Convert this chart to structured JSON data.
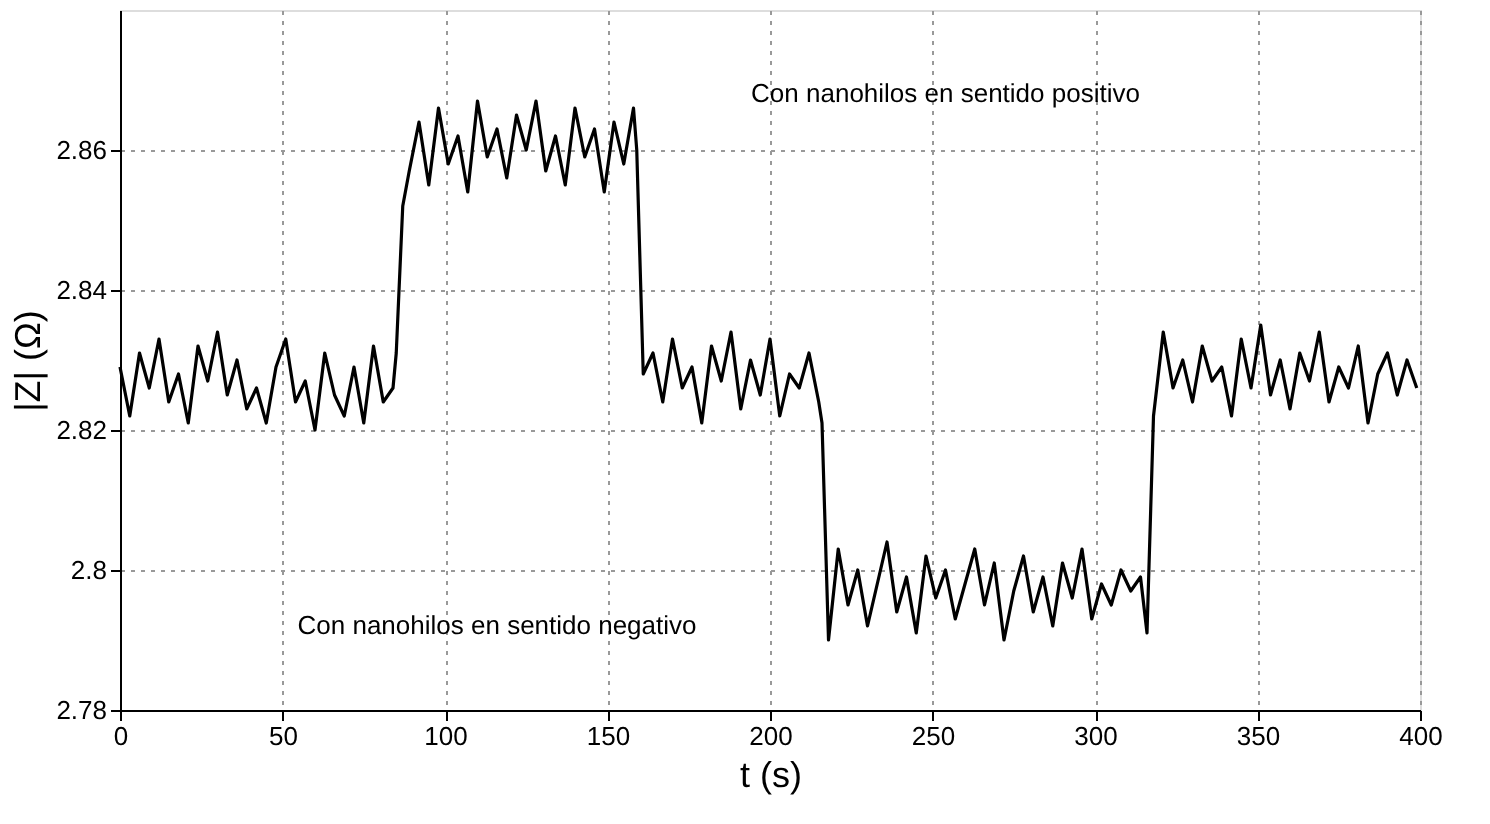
{
  "chart_data": {
    "type": "line",
    "xlabel": "t (s)",
    "ylabel": "|Z| (Ω)",
    "xlim": [
      0,
      400
    ],
    "ylim": [
      2.78,
      2.88
    ],
    "xticks": [
      0,
      50,
      100,
      150,
      200,
      250,
      300,
      350,
      400
    ],
    "yticks": [
      2.78,
      2.8,
      2.82,
      2.84,
      2.86
    ],
    "grid": true,
    "line_style": "solid",
    "marker": "none",
    "annotations": [
      "Con nanohilos en sentido positivo",
      "Con nanohilos en sentido negativo"
    ],
    "series": [
      {
        "color": "#000000",
        "x": [
          0,
          3,
          6,
          9,
          12,
          15,
          18,
          21,
          24,
          27,
          30,
          33,
          36,
          39,
          42,
          45,
          48,
          51,
          54,
          57,
          60,
          63,
          66,
          69,
          72,
          75,
          78,
          81,
          84,
          85,
          87,
          89,
          92,
          95,
          98,
          101,
          104,
          107,
          110,
          113,
          116,
          119,
          122,
          125,
          128,
          131,
          134,
          137,
          140,
          143,
          146,
          149,
          152,
          155,
          158,
          159,
          161,
          164,
          167,
          170,
          173,
          176,
          179,
          182,
          185,
          188,
          191,
          194,
          197,
          200,
          203,
          206,
          209,
          212,
          215,
          216,
          218,
          221,
          224,
          227,
          230,
          233,
          236,
          239,
          242,
          245,
          248,
          251,
          254,
          257,
          260,
          263,
          266,
          269,
          272,
          275,
          278,
          281,
          284,
          287,
          290,
          293,
          296,
          299,
          302,
          305,
          308,
          311,
          314,
          316,
          318,
          321,
          324,
          327,
          330,
          333,
          336,
          339,
          342,
          345,
          348,
          351,
          354,
          357,
          360,
          363,
          366,
          369,
          372,
          375,
          378,
          381,
          384,
          387,
          390,
          393,
          396,
          399
        ],
        "values": [
          2.829,
          2.822,
          2.831,
          2.826,
          2.833,
          2.824,
          2.828,
          2.821,
          2.832,
          2.827,
          2.834,
          2.825,
          2.83,
          2.823,
          2.826,
          2.821,
          2.829,
          2.833,
          2.824,
          2.827,
          2.82,
          2.831,
          2.825,
          2.822,
          2.829,
          2.821,
          2.832,
          2.824,
          2.826,
          2.831,
          2.852,
          2.857,
          2.864,
          2.855,
          2.866,
          2.858,
          2.862,
          2.854,
          2.867,
          2.859,
          2.863,
          2.856,
          2.865,
          2.86,
          2.867,
          2.857,
          2.862,
          2.855,
          2.866,
          2.859,
          2.863,
          2.854,
          2.864,
          2.858,
          2.866,
          2.86,
          2.828,
          2.831,
          2.824,
          2.833,
          2.826,
          2.829,
          2.821,
          2.832,
          2.827,
          2.834,
          2.823,
          2.83,
          2.825,
          2.833,
          2.822,
          2.828,
          2.826,
          2.831,
          2.824,
          2.821,
          2.79,
          2.803,
          2.795,
          2.8,
          2.792,
          2.798,
          2.804,
          2.794,
          2.799,
          2.791,
          2.802,
          2.796,
          2.8,
          2.793,
          2.798,
          2.803,
          2.795,
          2.801,
          2.79,
          2.797,
          2.802,
          2.794,
          2.799,
          2.792,
          2.801,
          2.796,
          2.803,
          2.793,
          2.798,
          2.795,
          2.8,
          2.797,
          2.799,
          2.791,
          2.822,
          2.834,
          2.826,
          2.83,
          2.824,
          2.832,
          2.827,
          2.829,
          2.822,
          2.833,
          2.826,
          2.835,
          2.825,
          2.83,
          2.823,
          2.831,
          2.827,
          2.834,
          2.824,
          2.829,
          2.826,
          2.832,
          2.821,
          2.828,
          2.831,
          2.825,
          2.83,
          2.826
        ]
      }
    ]
  }
}
